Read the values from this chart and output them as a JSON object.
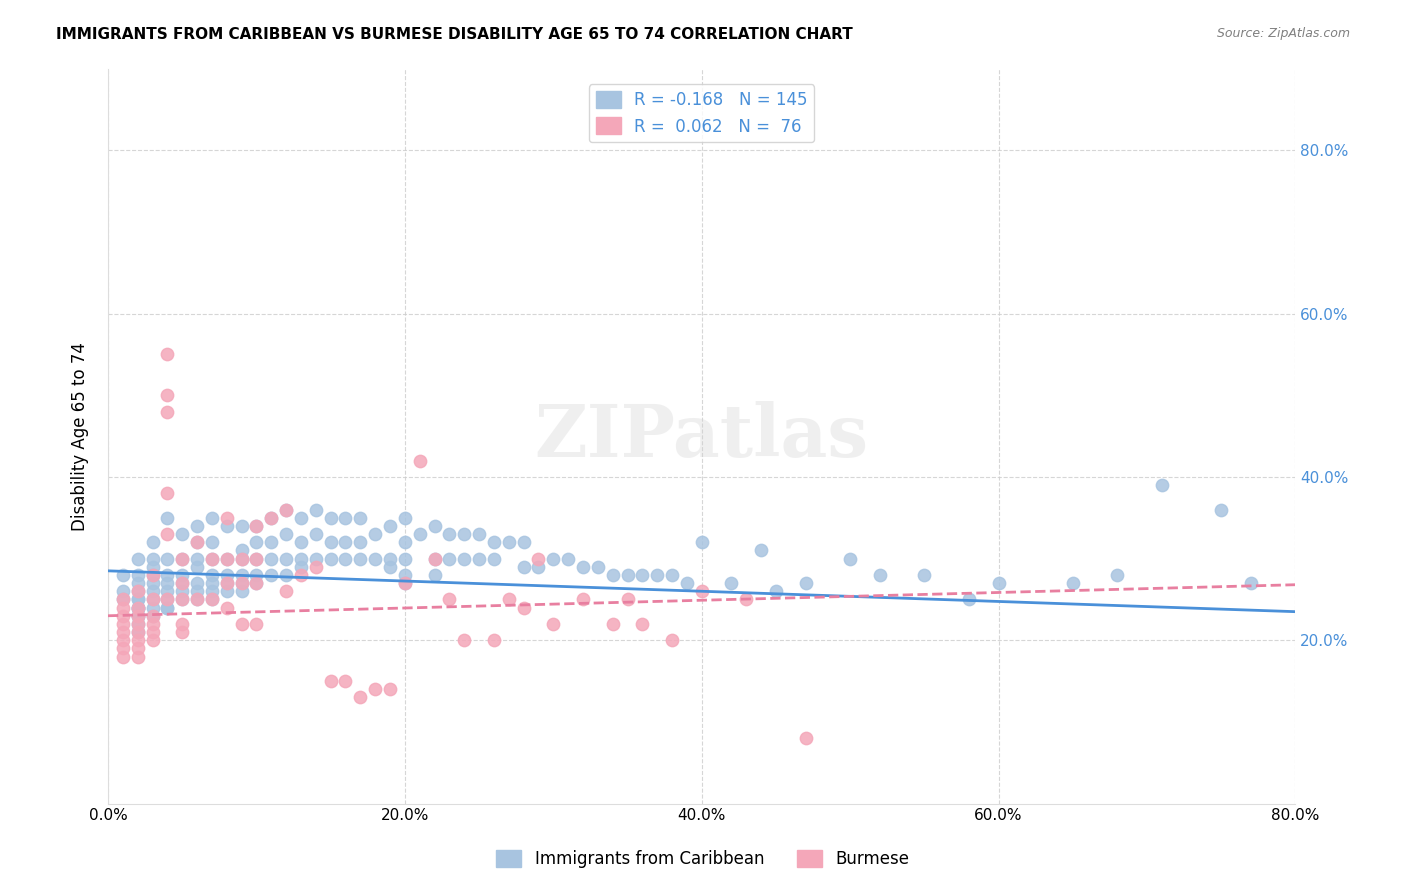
{
  "title": "IMMIGRANTS FROM CARIBBEAN VS BURMESE DISABILITY AGE 65 TO 74 CORRELATION CHART",
  "source": "Source: ZipAtlas.com",
  "xlabel": "",
  "ylabel": "Disability Age 65 to 74",
  "xlim": [
    0.0,
    0.8
  ],
  "ylim": [
    0.0,
    0.9
  ],
  "x_ticks": [
    0.0,
    0.2,
    0.4,
    0.6,
    0.8
  ],
  "x_tick_labels": [
    "0.0%",
    "20.0%",
    "40.0%",
    "60.0%",
    "80.0%"
  ],
  "y_ticks": [
    0.2,
    0.4,
    0.6,
    0.8
  ],
  "y_tick_labels": [
    "20.0%",
    "40.0%",
    "60.0%",
    "80.0%"
  ],
  "legend_labels": [
    "Immigrants from Caribbean",
    "Burmese"
  ],
  "series1_color": "#a8c4e0",
  "series2_color": "#f4a7b9",
  "line1_color": "#4a90d9",
  "line2_color": "#e87fa0",
  "R1": -0.168,
  "N1": 145,
  "R2": 0.062,
  "N2": 76,
  "watermark": "ZIPatlas",
  "series1_x": [
    0.01,
    0.01,
    0.01,
    0.02,
    0.02,
    0.02,
    0.02,
    0.02,
    0.02,
    0.02,
    0.02,
    0.02,
    0.02,
    0.02,
    0.02,
    0.02,
    0.03,
    0.03,
    0.03,
    0.03,
    0.03,
    0.03,
    0.03,
    0.03,
    0.03,
    0.04,
    0.04,
    0.04,
    0.04,
    0.04,
    0.04,
    0.04,
    0.04,
    0.05,
    0.05,
    0.05,
    0.05,
    0.05,
    0.05,
    0.06,
    0.06,
    0.06,
    0.06,
    0.06,
    0.06,
    0.06,
    0.07,
    0.07,
    0.07,
    0.07,
    0.07,
    0.07,
    0.07,
    0.08,
    0.08,
    0.08,
    0.08,
    0.08,
    0.09,
    0.09,
    0.09,
    0.09,
    0.09,
    0.09,
    0.1,
    0.1,
    0.1,
    0.1,
    0.1,
    0.11,
    0.11,
    0.11,
    0.11,
    0.12,
    0.12,
    0.12,
    0.12,
    0.13,
    0.13,
    0.13,
    0.13,
    0.14,
    0.14,
    0.14,
    0.15,
    0.15,
    0.15,
    0.16,
    0.16,
    0.16,
    0.17,
    0.17,
    0.17,
    0.18,
    0.18,
    0.19,
    0.19,
    0.19,
    0.2,
    0.2,
    0.2,
    0.2,
    0.2,
    0.21,
    0.22,
    0.22,
    0.22,
    0.23,
    0.23,
    0.24,
    0.24,
    0.25,
    0.25,
    0.26,
    0.26,
    0.27,
    0.28,
    0.28,
    0.29,
    0.3,
    0.31,
    0.32,
    0.33,
    0.34,
    0.35,
    0.36,
    0.37,
    0.38,
    0.39,
    0.4,
    0.42,
    0.44,
    0.45,
    0.47,
    0.5,
    0.52,
    0.55,
    0.58,
    0.6,
    0.65,
    0.68,
    0.71,
    0.75,
    0.77
  ],
  "series1_y": [
    0.28,
    0.26,
    0.25,
    0.3,
    0.28,
    0.27,
    0.26,
    0.25,
    0.25,
    0.24,
    0.24,
    0.24,
    0.23,
    0.23,
    0.22,
    0.21,
    0.32,
    0.3,
    0.29,
    0.28,
    0.27,
    0.26,
    0.25,
    0.24,
    0.23,
    0.35,
    0.3,
    0.28,
    0.27,
    0.26,
    0.25,
    0.24,
    0.24,
    0.33,
    0.3,
    0.28,
    0.27,
    0.26,
    0.25,
    0.34,
    0.32,
    0.3,
    0.29,
    0.27,
    0.26,
    0.25,
    0.35,
    0.32,
    0.3,
    0.28,
    0.27,
    0.26,
    0.25,
    0.34,
    0.3,
    0.28,
    0.27,
    0.26,
    0.34,
    0.31,
    0.3,
    0.28,
    0.27,
    0.26,
    0.34,
    0.32,
    0.3,
    0.28,
    0.27,
    0.35,
    0.32,
    0.3,
    0.28,
    0.36,
    0.33,
    0.3,
    0.28,
    0.35,
    0.32,
    0.3,
    0.29,
    0.36,
    0.33,
    0.3,
    0.35,
    0.32,
    0.3,
    0.35,
    0.32,
    0.3,
    0.35,
    0.32,
    0.3,
    0.33,
    0.3,
    0.34,
    0.3,
    0.29,
    0.35,
    0.32,
    0.3,
    0.28,
    0.27,
    0.33,
    0.34,
    0.3,
    0.28,
    0.33,
    0.3,
    0.33,
    0.3,
    0.33,
    0.3,
    0.32,
    0.3,
    0.32,
    0.32,
    0.29,
    0.29,
    0.3,
    0.3,
    0.29,
    0.29,
    0.28,
    0.28,
    0.28,
    0.28,
    0.28,
    0.27,
    0.32,
    0.27,
    0.31,
    0.26,
    0.27,
    0.3,
    0.28,
    0.28,
    0.25,
    0.27,
    0.27,
    0.28,
    0.39,
    0.36,
    0.27
  ],
  "series2_x": [
    0.01,
    0.01,
    0.01,
    0.01,
    0.01,
    0.01,
    0.01,
    0.01,
    0.02,
    0.02,
    0.02,
    0.02,
    0.02,
    0.02,
    0.02,
    0.02,
    0.03,
    0.03,
    0.03,
    0.03,
    0.03,
    0.03,
    0.04,
    0.04,
    0.04,
    0.04,
    0.04,
    0.04,
    0.05,
    0.05,
    0.05,
    0.05,
    0.05,
    0.06,
    0.06,
    0.07,
    0.07,
    0.08,
    0.08,
    0.08,
    0.08,
    0.09,
    0.09,
    0.09,
    0.1,
    0.1,
    0.1,
    0.1,
    0.11,
    0.12,
    0.12,
    0.13,
    0.14,
    0.15,
    0.16,
    0.17,
    0.18,
    0.19,
    0.2,
    0.21,
    0.22,
    0.23,
    0.24,
    0.26,
    0.27,
    0.28,
    0.29,
    0.3,
    0.32,
    0.34,
    0.35,
    0.36,
    0.38,
    0.4,
    0.43,
    0.47
  ],
  "series2_y": [
    0.25,
    0.24,
    0.23,
    0.22,
    0.21,
    0.2,
    0.19,
    0.18,
    0.26,
    0.24,
    0.23,
    0.22,
    0.21,
    0.2,
    0.19,
    0.18,
    0.28,
    0.25,
    0.23,
    0.22,
    0.21,
    0.2,
    0.55,
    0.5,
    0.48,
    0.38,
    0.33,
    0.25,
    0.3,
    0.27,
    0.25,
    0.22,
    0.21,
    0.32,
    0.25,
    0.3,
    0.25,
    0.35,
    0.3,
    0.27,
    0.24,
    0.3,
    0.27,
    0.22,
    0.34,
    0.3,
    0.27,
    0.22,
    0.35,
    0.36,
    0.26,
    0.28,
    0.29,
    0.15,
    0.15,
    0.13,
    0.14,
    0.14,
    0.27,
    0.42,
    0.3,
    0.25,
    0.2,
    0.2,
    0.25,
    0.24,
    0.3,
    0.22,
    0.25,
    0.22,
    0.25,
    0.22,
    0.2,
    0.26,
    0.25,
    0.08
  ]
}
